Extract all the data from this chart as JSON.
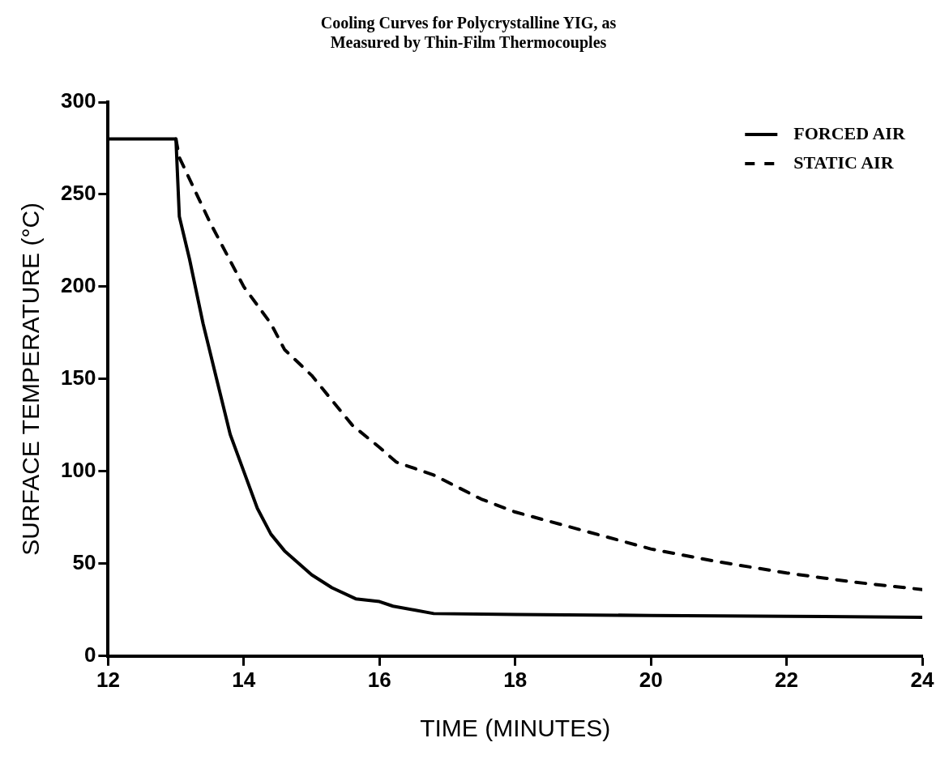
{
  "chart_data": {
    "type": "line",
    "title": "Cooling Curves for Polycrystalline YIG, as\nMeasured by Thin-Film Thermocouples",
    "xlabel": "TIME (MINUTES)",
    "ylabel": "SURFACE TEMPERATURE (°C)",
    "xlim": [
      12,
      24
    ],
    "xticks": [
      12,
      14,
      16,
      18,
      20,
      22,
      24
    ],
    "ylim": [
      0,
      300
    ],
    "yticks": [
      0,
      50,
      100,
      150,
      200,
      250,
      300
    ],
    "grid": false,
    "legend": "top right",
    "marker": "none",
    "series": [
      {
        "name": "FORCED AIR",
        "color": "#000000",
        "line_style": "solid",
        "x": [
          12,
          13,
          13.05,
          13.2,
          13.4,
          13.6,
          13.8,
          14,
          14.2,
          14.4,
          14.6,
          15,
          15.3,
          15.65,
          16,
          16.2,
          16.5,
          16.8,
          18,
          20,
          22,
          24
        ],
        "values": [
          280,
          280,
          238,
          215,
          180,
          150,
          120,
          100,
          80,
          66,
          57,
          44,
          37,
          31,
          29.5,
          27,
          25,
          23,
          22.5,
          22,
          21.5,
          21
        ]
      },
      {
        "name": "STATIC AIR",
        "color": "#000000",
        "line_style": "dashed",
        "x": [
          13,
          13.05,
          13.5,
          14,
          14.4,
          14.6,
          15,
          15.6,
          16,
          16.25,
          16.8,
          17.5,
          18,
          19,
          20,
          21,
          22,
          23,
          24
        ],
        "values": [
          280,
          270,
          235,
          200,
          180,
          166,
          152,
          125,
          113,
          105,
          98,
          85,
          78,
          68,
          58,
          51,
          45,
          40,
          36
        ]
      }
    ]
  }
}
